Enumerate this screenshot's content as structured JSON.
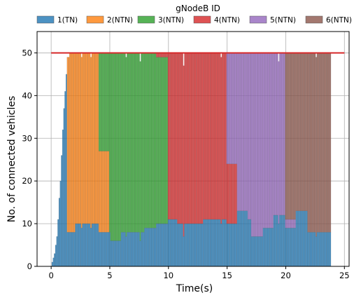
{
  "chart_data": {
    "type": "bar",
    "stacked": true,
    "xlabel": "Time(s)",
    "ylabel": "No. of connected vehicles",
    "xlim": [
      -1.2,
      25.4
    ],
    "ylim": [
      0,
      55
    ],
    "xticks": [
      0,
      5,
      10,
      15,
      20,
      25
    ],
    "yticks": [
      0,
      10,
      20,
      30,
      40,
      50
    ],
    "grid": true,
    "legend": {
      "title": "gNodeB ID",
      "placement": "top",
      "ncol": 6,
      "entries": [
        "1(TN)",
        "2(NTN)",
        "3(NTN)",
        "4(NTN)",
        "5(NTN)",
        "6(NTN)"
      ]
    },
    "bar_width": 0.1,
    "capacity_line": {
      "y": 50,
      "x": [
        0,
        25
      ],
      "color": "#d62728"
    },
    "series_colors": [
      "#1f77b4",
      "#ff7f0e",
      "#2ca02c",
      "#d62728",
      "#9467bd",
      "#8c564b"
    ],
    "bar_alpha": 0.8,
    "segments": [
      {
        "t0": 1.4,
        "t1": 1.6,
        "counts": [
          8,
          41,
          0,
          0,
          0,
          0
        ]
      },
      {
        "t0": 1.6,
        "t1": 2.1,
        "counts": [
          8,
          42,
          0,
          0,
          0,
          0
        ]
      },
      {
        "t0": 2.1,
        "t1": 4.1,
        "counts": [
          10,
          40,
          0,
          0,
          0,
          0
        ]
      },
      {
        "t0": 4.1,
        "t1": 4.1,
        "counts": [
          8,
          42,
          0,
          0,
          0,
          0
        ]
      },
      {
        "t0": 4.1,
        "t1": 5.0,
        "counts": [
          8,
          19,
          23,
          0,
          0,
          0
        ]
      },
      {
        "t0": 5.0,
        "t1": 5.1,
        "counts": [
          8,
          0,
          42,
          0,
          0,
          0
        ]
      },
      {
        "t0": 5.1,
        "t1": 6.0,
        "counts": [
          6,
          0,
          44,
          0,
          0,
          0
        ]
      },
      {
        "t0": 6.0,
        "t1": 8.0,
        "counts": [
          8,
          0,
          42,
          0,
          0,
          0
        ]
      },
      {
        "t0": 8.0,
        "t1": 9.0,
        "counts": [
          9,
          0,
          41,
          0,
          0,
          0
        ]
      },
      {
        "t0": 9.0,
        "t1": 10.0,
        "counts": [
          10,
          0,
          39,
          1,
          0,
          0
        ]
      },
      {
        "t0": 10.0,
        "t1": 10.8,
        "counts": [
          11,
          0,
          0,
          39,
          0,
          0
        ]
      },
      {
        "t0": 10.8,
        "t1": 13.0,
        "counts": [
          10,
          0,
          0,
          40,
          0,
          0
        ]
      },
      {
        "t0": 13.0,
        "t1": 15.0,
        "counts": [
          11,
          0,
          0,
          39,
          0,
          0
        ]
      },
      {
        "t0": 15.0,
        "t1": 15.9,
        "counts": [
          10,
          0,
          0,
          14,
          26,
          0
        ]
      },
      {
        "t0": 15.9,
        "t1": 16.8,
        "counts": [
          13,
          0,
          0,
          0,
          37,
          0
        ]
      },
      {
        "t0": 16.8,
        "t1": 17.1,
        "counts": [
          11,
          0,
          0,
          0,
          39,
          0
        ]
      },
      {
        "t0": 17.1,
        "t1": 18.1,
        "counts": [
          7,
          0,
          0,
          0,
          43,
          0
        ]
      },
      {
        "t0": 18.1,
        "t1": 19.0,
        "counts": [
          9,
          0,
          0,
          0,
          41,
          0
        ]
      },
      {
        "t0": 19.0,
        "t1": 20.0,
        "counts": [
          12,
          0,
          0,
          0,
          38,
          0
        ]
      },
      {
        "t0": 20.0,
        "t1": 20.9,
        "counts": [
          9,
          0,
          0,
          0,
          2,
          39
        ]
      },
      {
        "t0": 20.9,
        "t1": 21.9,
        "counts": [
          13,
          0,
          0,
          0,
          0,
          37
        ]
      },
      {
        "t0": 21.9,
        "t1": 23.9,
        "counts": [
          8,
          0,
          0,
          0,
          0,
          42
        ]
      }
    ],
    "ramp": [
      {
        "t": 0.0,
        "count": 0
      },
      {
        "t": 0.1,
        "count": 1
      },
      {
        "t": 0.2,
        "count": 2
      },
      {
        "t": 0.3,
        "count": 3
      },
      {
        "t": 0.4,
        "count": 5
      },
      {
        "t": 0.5,
        "count": 7
      },
      {
        "t": 0.6,
        "count": 11
      },
      {
        "t": 0.7,
        "count": 16
      },
      {
        "t": 0.8,
        "count": 20
      },
      {
        "t": 0.9,
        "count": 26
      },
      {
        "t": 1.0,
        "count": 32
      },
      {
        "t": 1.1,
        "count": 37
      },
      {
        "t": 1.2,
        "count": 41
      },
      {
        "t": 1.3,
        "count": 45
      }
    ],
    "dips": [
      {
        "t": 2.6,
        "total": 49
      },
      {
        "t": 3.4,
        "total": 49
      },
      {
        "t": 6.4,
        "total": 49
      },
      {
        "t": 7.6,
        "total": 48
      },
      {
        "t": 11.3,
        "total": 47
      },
      {
        "t": 14.5,
        "total": 49
      },
      {
        "t": 19.4,
        "total": 48
      },
      {
        "t": 22.6,
        "total": 49
      }
    ]
  }
}
